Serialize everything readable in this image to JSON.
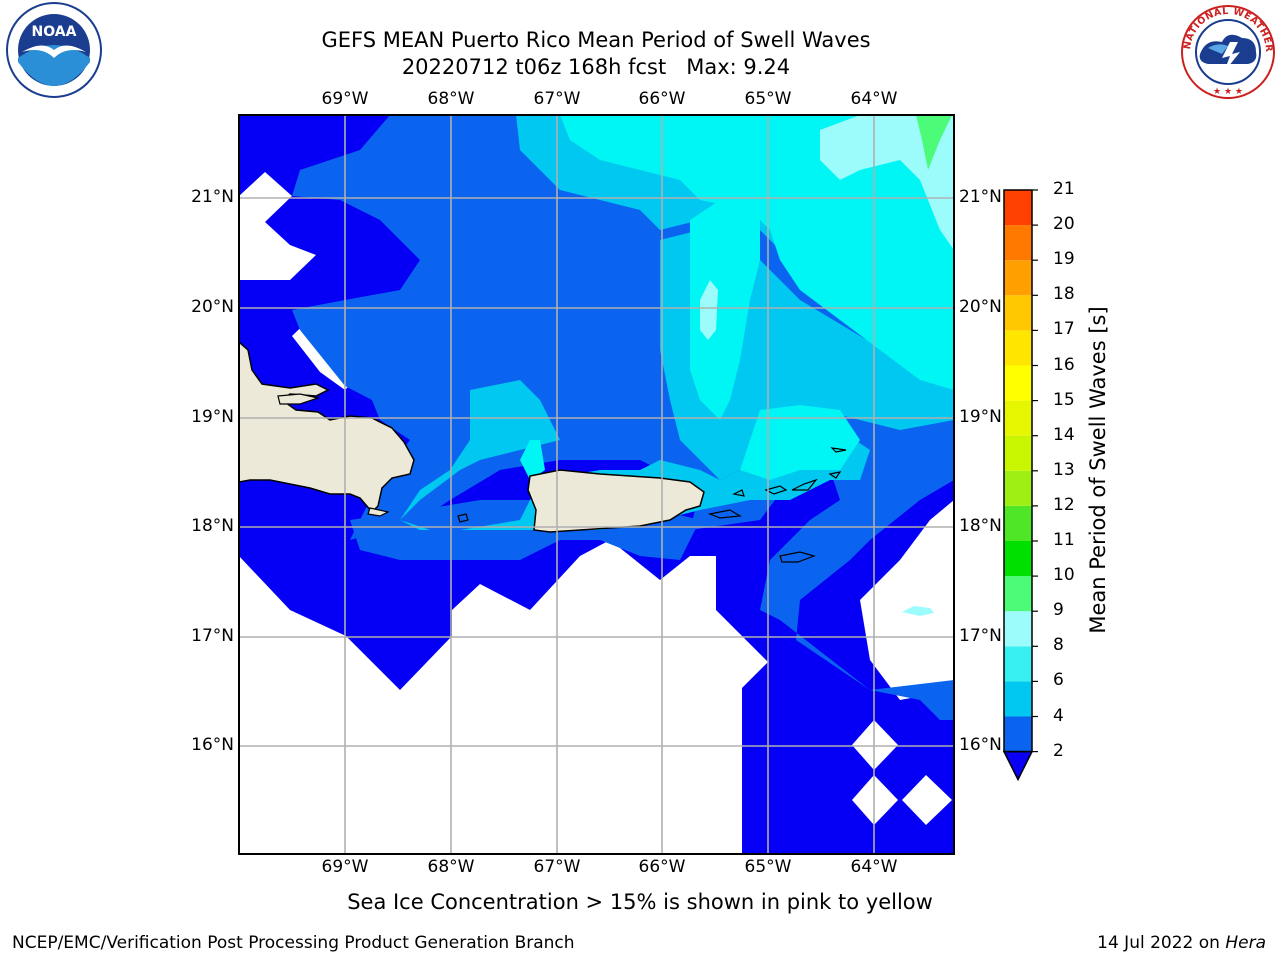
{
  "title_line1": "GEFS MEAN Puerto Rico Mean Period of Swell Waves",
  "title_line2": "20220712 t06z 168h fcst   Max: 9.24",
  "map": {
    "lon_labels": [
      "69°W",
      "68°W",
      "67°W",
      "66°W",
      "65°W",
      "64°W"
    ],
    "lat_labels": [
      "21°N",
      "20°N",
      "19°N",
      "18°N",
      "17°N",
      "16°N"
    ]
  },
  "colorbar": {
    "label": "Mean Period of Swell Waves [s]",
    "ticks": [
      "2",
      "4",
      "6",
      "8",
      "9",
      "10",
      "11",
      "12",
      "13",
      "14",
      "15",
      "16",
      "17",
      "18",
      "19",
      "20",
      "21"
    ],
    "colors": [
      "#0a64f0",
      "#00c8f0",
      "#38f0f0",
      "#9cfcfc",
      "#4cfc78",
      "#00e000",
      "#50e628",
      "#a0ef14",
      "#c8f500",
      "#e6f500",
      "#ffff00",
      "#ffe600",
      "#ffc800",
      "#ffa000",
      "#ff7800",
      "#ff4000"
    ],
    "extend_color": "#0a00f5"
  },
  "palette": {
    "below": "#0500f5",
    "c2_4": "#0a64f0",
    "c4_6": "#00c8f0",
    "c6_8": "#00f5f5",
    "c8_9": "#9cfcfc",
    "c9_10": "#4cfc78",
    "land": "#ece9d8"
  },
  "note": "Sea Ice Concentration > 15% is shown in pink to yellow",
  "footer_left": "NCEP/EMC/Verification Post Processing Product Generation Branch",
  "footer_right_prefix": "14 Jul 2022 on ",
  "footer_right_host": "Hera",
  "noaa_logo_text": "NOAA",
  "nws_logo_text": "NATIONAL WEATHER SERVICE"
}
